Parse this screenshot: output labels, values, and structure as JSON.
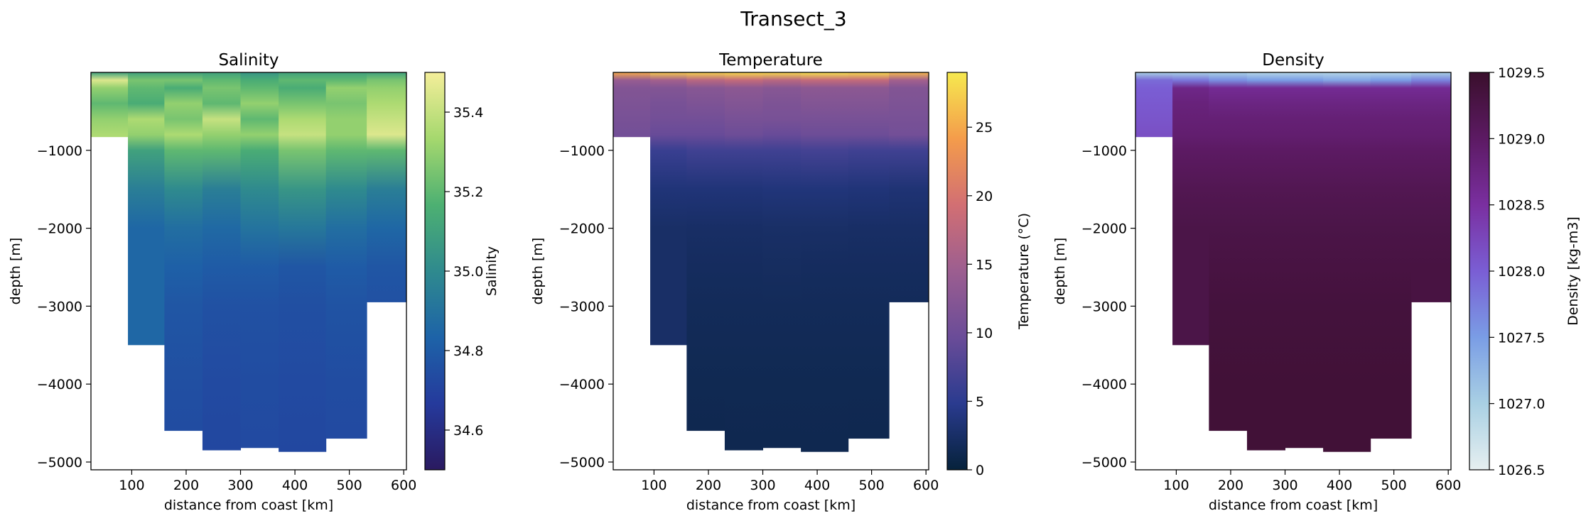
{
  "figure": {
    "title": "Transect_3"
  },
  "chart_data": [
    {
      "type": "heatmap",
      "title": "Salinity",
      "xlabel": "distance from coast [km]",
      "ylabel": "depth [m]",
      "xlim": [
        25,
        605
      ],
      "ylim": [
        -5100,
        0
      ],
      "xticks": [
        100,
        200,
        300,
        400,
        500,
        600
      ],
      "yticks": [
        -1000,
        -2000,
        -3000,
        -4000,
        -5000
      ],
      "station_edges": [
        25,
        93,
        160,
        230,
        300,
        370,
        457,
        532,
        605
      ],
      "station_bottoms": [
        -830,
        -3500,
        -4600,
        -4850,
        -4820,
        -4870,
        -4700,
        -2950
      ],
      "colorbar": {
        "label": "Salinity",
        "range": [
          34.5,
          35.5
        ],
        "ticks": [
          34.6,
          34.8,
          35.0,
          35.2,
          35.4
        ],
        "colormap": [
          "#2a1a60",
          "#253a9c",
          "#1d63a8",
          "#2f8a8e",
          "#4db072",
          "#a5d86e",
          "#f4ee9a"
        ]
      },
      "depth_levels": [
        0,
        -100,
        -200,
        -400,
        -600,
        -800,
        -1000,
        -1500,
        -2000,
        -2500,
        -3000,
        -4000,
        -5000
      ],
      "profiles": [
        [
          35.1,
          35.45,
          35.3,
          35.2,
          35.3,
          35.35
        ],
        [
          35.1,
          35.25,
          35.2,
          35.15,
          35.35,
          35.3,
          35.1,
          34.95,
          34.85
        ],
        [
          35.1,
          35.25,
          35.15,
          35.3,
          35.25,
          35.35,
          35.2,
          35.0,
          34.88,
          34.82,
          34.78,
          34.75,
          34.74
        ],
        [
          35.1,
          35.2,
          35.25,
          35.2,
          35.4,
          35.3,
          35.2,
          34.95,
          34.86,
          34.8,
          34.76,
          34.73,
          34.72
        ],
        [
          35.05,
          35.15,
          35.2,
          35.3,
          35.2,
          35.3,
          35.15,
          35.0,
          34.9,
          34.8,
          34.76,
          34.74,
          34.73
        ],
        [
          35.1,
          35.2,
          35.15,
          35.25,
          35.35,
          35.4,
          35.25,
          35.05,
          34.92,
          34.78,
          34.75,
          34.73,
          34.72
        ],
        [
          35.1,
          35.2,
          35.3,
          35.25,
          35.3,
          35.3,
          35.2,
          35.0,
          34.88,
          34.8,
          34.77,
          34.74,
          34.73
        ],
        [
          35.1,
          35.25,
          35.3,
          35.35,
          35.4,
          35.45,
          35.2,
          34.95,
          34.85,
          34.78,
          34.76
        ]
      ]
    },
    {
      "type": "heatmap",
      "title": "Temperature",
      "xlabel": "distance from coast [km]",
      "ylabel": "depth [m]",
      "xlim": [
        25,
        605
      ],
      "ylim": [
        -5100,
        0
      ],
      "xticks": [
        100,
        200,
        300,
        400,
        500,
        600
      ],
      "yticks": [
        -1000,
        -2000,
        -3000,
        -4000,
        -5000
      ],
      "station_edges": [
        25,
        93,
        160,
        230,
        300,
        370,
        457,
        532,
        605
      ],
      "station_bottoms": [
        -830,
        -3500,
        -4600,
        -4850,
        -4820,
        -4870,
        -4700,
        -2950
      ],
      "colorbar": {
        "label": "Temperature (°C)",
        "range": [
          0,
          29
        ],
        "ticks": [
          0,
          5,
          10,
          15,
          20,
          25
        ],
        "colormap": [
          "#06223b",
          "#2a3b8f",
          "#6a4c98",
          "#9c5e90",
          "#d26f73",
          "#f49c4b",
          "#f6e94f"
        ]
      },
      "depth_levels": [
        0,
        -100,
        -200,
        -400,
        -600,
        -800,
        -1000,
        -1500,
        -2000,
        -2500,
        -3000,
        -4000,
        -5000
      ],
      "profiles": [
        [
          25,
          14,
          12,
          11.5,
          11,
          10.5
        ],
        [
          27,
          15,
          12,
          11,
          10.5,
          9.5,
          6,
          3.5,
          2.5
        ],
        [
          27.5,
          17,
          12.5,
          11.5,
          10.5,
          9.5,
          6.5,
          3.5,
          2.4,
          2.0,
          1.7,
          1.3,
          1.2
        ],
        [
          28,
          18,
          13,
          12,
          11,
          10,
          6.5,
          3.5,
          2.4,
          2.0,
          1.7,
          1.3,
          1.2
        ],
        [
          28,
          17,
          12.5,
          11.5,
          11,
          9.5,
          6.5,
          3.6,
          2.5,
          2.1,
          1.7,
          1.3,
          1.2
        ],
        [
          28.5,
          18,
          13,
          12,
          11,
          10,
          6.8,
          3.6,
          2.5,
          2.0,
          1.7,
          1.3,
          1.2
        ],
        [
          28,
          18,
          13,
          12,
          11,
          10,
          6.5,
          3.5,
          2.4,
          2.0,
          1.7,
          1.3,
          1.2
        ],
        [
          26,
          15,
          12,
          11.5,
          11,
          10.5,
          6.5,
          3.3,
          2.4,
          2.0,
          1.8
        ]
      ]
    },
    {
      "type": "heatmap",
      "title": "Density",
      "xlabel": "distance from coast [km]",
      "ylabel": "depth [m]",
      "xlim": [
        25,
        605
      ],
      "ylim": [
        -5100,
        0
      ],
      "xticks": [
        100,
        200,
        300,
        400,
        500,
        600
      ],
      "yticks": [
        -1000,
        -2000,
        -3000,
        -4000,
        -5000
      ],
      "station_edges": [
        25,
        93,
        160,
        230,
        300,
        370,
        457,
        532,
        605
      ],
      "station_bottoms": [
        -830,
        -3500,
        -4600,
        -4850,
        -4820,
        -4870,
        -4700,
        -2950
      ],
      "colorbar": {
        "label": "Density [kg-m3]",
        "range": [
          1026.5,
          1029.5
        ],
        "ticks": [
          1026.5,
          1027.0,
          1027.5,
          1028.0,
          1028.5,
          1029.0,
          1029.5
        ],
        "colormap": [
          "#e6eff0",
          "#a9d0e4",
          "#7a9de5",
          "#7a5ed4",
          "#7a2fa0",
          "#5c1a63",
          "#3a0f2c"
        ]
      },
      "depth_levels": [
        0,
        -100,
        -200,
        -400,
        -600,
        -800,
        -1000,
        -1500,
        -2000,
        -2500,
        -3000,
        -4000,
        -5000
      ],
      "profiles": [
        [
          1027.0,
          1027.9,
          1028.0,
          1028.05,
          1028.1,
          1028.15
        ],
        [
          1027.0,
          1027.8,
          1028.7,
          1028.8,
          1028.85,
          1028.9,
          1029.0,
          1029.15,
          1029.25
        ],
        [
          1027.0,
          1027.6,
          1028.6,
          1028.75,
          1028.85,
          1028.9,
          1029.0,
          1029.15,
          1029.25,
          1029.3,
          1029.35,
          1029.4,
          1029.4
        ],
        [
          1026.9,
          1027.5,
          1028.6,
          1028.75,
          1028.85,
          1028.9,
          1029.0,
          1029.15,
          1029.25,
          1029.3,
          1029.35,
          1029.4,
          1029.4
        ],
        [
          1026.9,
          1027.5,
          1028.6,
          1028.75,
          1028.85,
          1028.9,
          1029.0,
          1029.15,
          1029.25,
          1029.3,
          1029.35,
          1029.4,
          1029.4
        ],
        [
          1026.9,
          1027.4,
          1028.6,
          1028.75,
          1028.85,
          1028.9,
          1029.0,
          1029.15,
          1029.25,
          1029.3,
          1029.35,
          1029.4,
          1029.4
        ],
        [
          1026.9,
          1027.5,
          1028.6,
          1028.75,
          1028.85,
          1028.9,
          1029.0,
          1029.15,
          1029.25,
          1029.3,
          1029.35,
          1029.4,
          1029.4
        ],
        [
          1027.0,
          1027.7,
          1028.6,
          1028.75,
          1028.85,
          1028.9,
          1029.0,
          1029.15,
          1029.25,
          1029.3,
          1029.3
        ]
      ]
    }
  ]
}
